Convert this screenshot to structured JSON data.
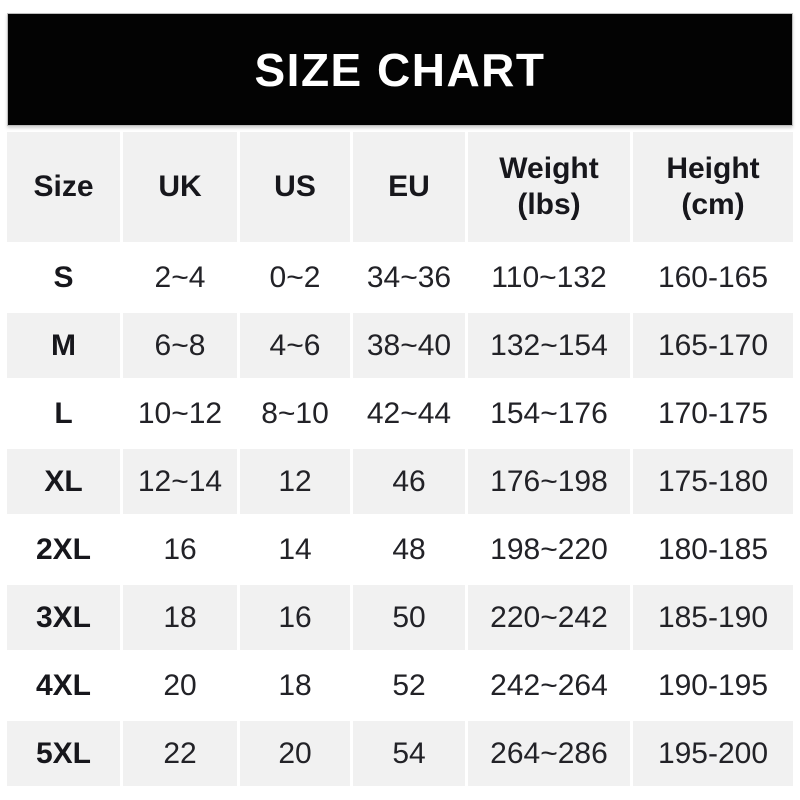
{
  "banner": {
    "title": "SIZE CHART",
    "bg_color": "#000000",
    "text_color": "#ffffff"
  },
  "colors": {
    "stripe_gray": "#f1f1f1",
    "row_white": "#ffffff",
    "text_dark": "#1c1c21"
  },
  "chart_data": {
    "type": "table",
    "title": "SIZE CHART",
    "columns": [
      {
        "key": "size",
        "label": "Size"
      },
      {
        "key": "uk",
        "label": "UK"
      },
      {
        "key": "us",
        "label": "US"
      },
      {
        "key": "eu",
        "label": "EU"
      },
      {
        "key": "weight",
        "label": "Weight",
        "sub": "(lbs)"
      },
      {
        "key": "height",
        "label": "Height",
        "sub": "(cm)"
      }
    ],
    "rows": [
      [
        "S",
        "2~4",
        "0~2",
        "34~36",
        "110~132",
        "160-165"
      ],
      [
        "M",
        "6~8",
        "4~6",
        "38~40",
        "132~154",
        "165-170"
      ],
      [
        "L",
        "10~12",
        "8~10",
        "42~44",
        "154~176",
        "170-175"
      ],
      [
        "XL",
        "12~14",
        "12",
        "46",
        "176~198",
        "175-180"
      ],
      [
        "2XL",
        "16",
        "14",
        "48",
        "198~220",
        "180-185"
      ],
      [
        "3XL",
        "18",
        "16",
        "50",
        "220~242",
        "185-190"
      ],
      [
        "4XL",
        "20",
        "18",
        "52",
        "242~264",
        "190-195"
      ],
      [
        "5XL",
        "22",
        "20",
        "54",
        "264~286",
        "195-200"
      ]
    ],
    "layout": {
      "striped_rows": "alternating white and light gray, header gray",
      "grid": "3px white gaps between cells"
    }
  }
}
